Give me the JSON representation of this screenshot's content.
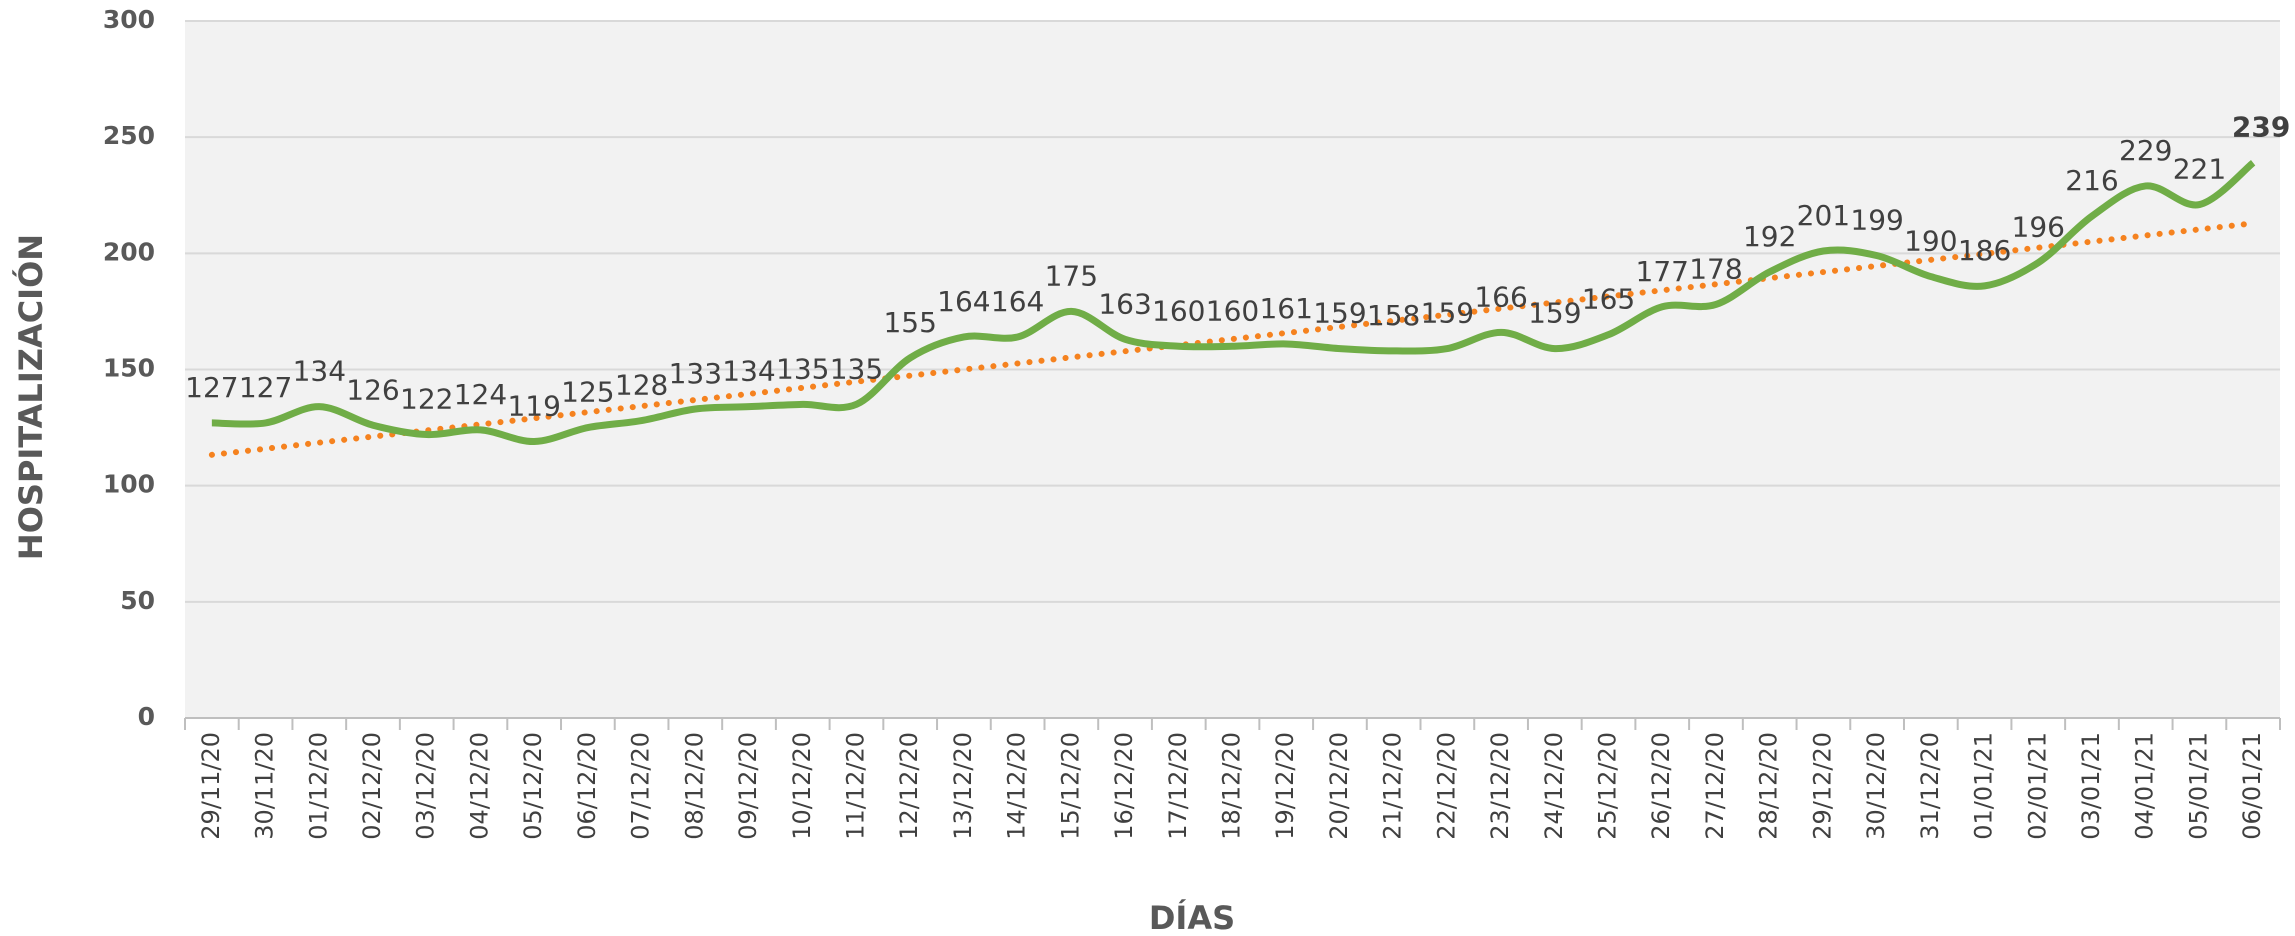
{
  "chart_data": {
    "type": "line",
    "x_label": "DÍAS",
    "y_label": "HOSPITALIZACIÓN",
    "categories": [
      "29/11/20",
      "30/11/20",
      "01/12/20",
      "02/12/20",
      "03/12/20",
      "04/12/20",
      "05/12/20",
      "06/12/20",
      "07/12/20",
      "08/12/20",
      "09/12/20",
      "10/12/20",
      "11/12/20",
      "12/12/20",
      "13/12/20",
      "14/12/20",
      "15/12/20",
      "16/12/20",
      "17/12/20",
      "18/12/20",
      "19/12/20",
      "20/12/20",
      "21/12/20",
      "22/12/20",
      "23/12/20",
      "24/12/20",
      "25/12/20",
      "26/12/20",
      "27/12/20",
      "28/12/20",
      "29/12/20",
      "30/12/20",
      "31/12/20",
      "01/01/21",
      "02/01/21",
      "03/01/21",
      "04/01/21",
      "05/01/21",
      "06/01/21"
    ],
    "values": [
      127,
      127,
      134,
      126,
      122,
      124,
      119,
      125,
      128,
      133,
      134,
      135,
      135,
      155,
      164,
      164,
      175,
      163,
      160,
      160,
      161,
      159,
      158,
      159,
      166,
      159,
      165,
      177,
      178,
      192,
      201,
      199,
      190,
      186,
      196,
      216,
      229,
      221,
      239
    ],
    "color": "#70ad47",
    "smooth": true,
    "data_labels": true,
    "highlight_last": true,
    "trendline": "linear",
    "trendline_color": "#f5821f",
    "ylim": [
      0,
      300
    ],
    "yticks": [
      0,
      50,
      100,
      150,
      200,
      250,
      300
    ],
    "grid": true
  }
}
